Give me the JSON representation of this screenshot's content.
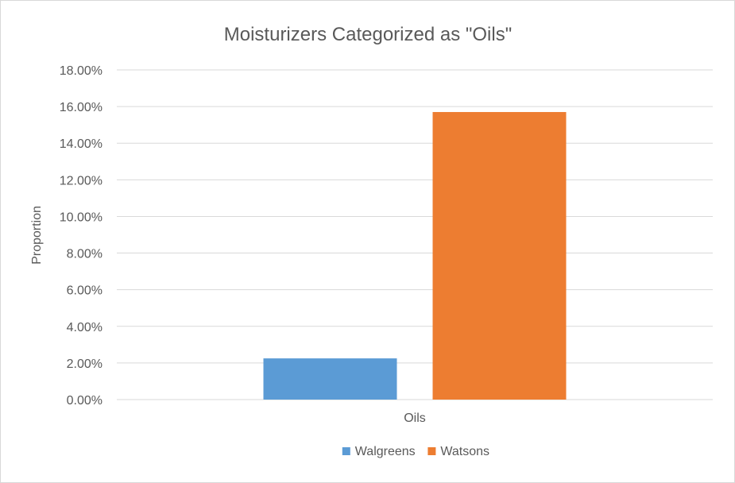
{
  "chart_data": {
    "type": "bar",
    "title": "Moisturizers Categorized as \"Oils\"",
    "xlabel": "",
    "ylabel": "Proportion",
    "categories": [
      "Oils"
    ],
    "series": [
      {
        "name": "Walgreens",
        "values": [
          0.0225
        ],
        "color": "#5b9bd5"
      },
      {
        "name": "Watsons",
        "values": [
          0.157
        ],
        "color": "#ed7d31"
      }
    ],
    "ylim": [
      0,
      0.18
    ],
    "yticks": [
      0,
      0.02,
      0.04,
      0.06,
      0.08,
      0.1,
      0.12,
      0.14,
      0.16,
      0.18
    ],
    "ytick_labels": [
      "0.00%",
      "2.00%",
      "4.00%",
      "6.00%",
      "8.00%",
      "10.00%",
      "12.00%",
      "14.00%",
      "16.00%",
      "18.00%"
    ],
    "grid": true,
    "legend_position": "bottom",
    "gridline_color": "#d9d9d9",
    "text_color": "#595959"
  }
}
